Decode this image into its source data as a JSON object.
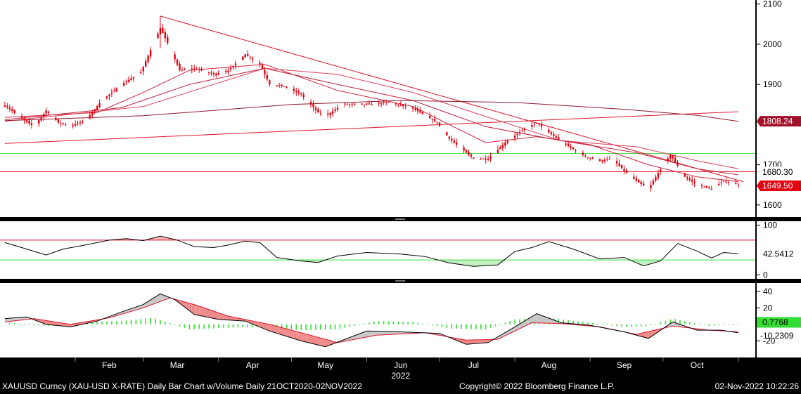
{
  "footer": {
    "description": "XAUUSD Curncy (XAU-USD X-RATE) Daily Bar Chart w/Volume  Daily 21OCT2020-02NOV2022",
    "copyright": "Copyright© 2022 Bloomberg Finance L.P.",
    "timestamp": "02-Nov-2022 10:22:26"
  },
  "colors": {
    "candle": "#e3000f",
    "trendline": "#e0142a",
    "green_line": "#33dd33",
    "rsi_line": "#000000",
    "macd_line": "#000000",
    "macd_signal": "#e0142a",
    "histogram": "#33dd33",
    "panel_bg": "#ffffff",
    "axis_bg": "#ffffff",
    "frame_bg": "#000000"
  },
  "chart_data": [
    {
      "type": "candlestick",
      "panel": "price",
      "y_ticks": [
        "2100",
        "2000",
        "1900",
        "1700",
        "1600"
      ],
      "ylim": [
        1570,
        2110
      ],
      "x_month_labels": [
        "Feb",
        "Mar",
        "Apr",
        "May",
        "Jun",
        "Jul",
        "Aug",
        "Sep",
        "Oct"
      ],
      "year_label": "2022",
      "value_tags": [
        {
          "label": "1808.24",
          "value": 1808.24,
          "style": "moving-average"
        },
        {
          "label": "1680.30",
          "value": 1680.3,
          "style": "level"
        },
        {
          "label": "1649.50",
          "value": 1649.5,
          "style": "last-price"
        }
      ],
      "horizontal_levels": [
        {
          "value": 1728,
          "color": "green"
        },
        {
          "value": 1683,
          "color": "red"
        }
      ],
      "trendlines": [
        {
          "from": {
            "date": "2022-03-08",
            "value": 2070
          },
          "to": {
            "date": "2022-11-03",
            "value": 1658
          }
        },
        {
          "from": {
            "date": "2022-01-03",
            "value": 1753
          },
          "to": {
            "date": "2022-11-01",
            "value": 1832
          }
        }
      ],
      "close_path": {
        "dates": [
          "2022-01-03",
          "2022-01-10",
          "2022-01-15",
          "2022-01-20",
          "2022-01-25",
          "2022-01-30",
          "2022-02-05",
          "2022-02-12",
          "2022-02-20",
          "2022-02-28",
          "2022-03-05",
          "2022-03-08",
          "2022-03-12",
          "2022-03-16",
          "2022-03-22",
          "2022-03-30",
          "2022-04-05",
          "2022-04-12",
          "2022-04-18",
          "2022-04-22",
          "2022-04-28",
          "2022-05-05",
          "2022-05-12",
          "2022-05-16",
          "2022-05-22",
          "2022-06-01",
          "2022-06-10",
          "2022-06-20",
          "2022-06-30",
          "2022-07-05",
          "2022-07-10",
          "2022-07-15",
          "2022-07-21",
          "2022-07-28",
          "2022-08-05",
          "2022-08-10",
          "2022-08-15",
          "2022-08-22",
          "2022-08-30",
          "2022-09-05",
          "2022-09-10",
          "2022-09-15",
          "2022-09-20",
          "2022-09-25",
          "2022-09-28",
          "2022-10-04",
          "2022-10-10",
          "2022-10-15",
          "2022-10-21",
          "2022-10-26",
          "2022-11-01"
        ],
        "values": [
          1848,
          1815,
          1795,
          1835,
          1805,
          1797,
          1810,
          1860,
          1900,
          1930,
          2000,
          2040,
          1990,
          1935,
          1940,
          1925,
          1935,
          1975,
          1950,
          1900,
          1895,
          1875,
          1830,
          1825,
          1850,
          1850,
          1855,
          1840,
          1805,
          1765,
          1740,
          1715,
          1715,
          1755,
          1790,
          1805,
          1780,
          1750,
          1720,
          1710,
          1715,
          1685,
          1660,
          1640,
          1670,
          1725,
          1670,
          1650,
          1640,
          1660,
          1650
        ]
      },
      "moving_averages": [
        {
          "dates": [
            "2022-01-03",
            "2022-02-10",
            "2022-03-01",
            "2022-03-20",
            "2022-04-20",
            "2022-05-20",
            "2022-06-20",
            "2022-07-20",
            "2022-08-10",
            "2022-09-01",
            "2022-09-25",
            "2022-10-15",
            "2022-11-01"
          ],
          "values": [
            1818,
            1830,
            1880,
            1935,
            1950,
            1885,
            1845,
            1755,
            1770,
            1750,
            1700,
            1670,
            1658
          ]
        },
        {
          "dates": [
            "2022-01-03",
            "2022-02-20",
            "2022-03-20",
            "2022-04-20",
            "2022-05-20",
            "2022-06-20",
            "2022-07-20",
            "2022-08-20",
            "2022-09-20",
            "2022-10-15",
            "2022-11-01"
          ],
          "values": [
            1812,
            1842,
            1900,
            1940,
            1900,
            1860,
            1795,
            1760,
            1730,
            1690,
            1675
          ]
        },
        {
          "dates": [
            "2022-01-03",
            "2022-03-01",
            "2022-04-20",
            "2022-05-20",
            "2022-06-20",
            "2022-07-20",
            "2022-08-20",
            "2022-09-20",
            "2022-10-15",
            "2022-11-01"
          ],
          "values": [
            1808,
            1845,
            1940,
            1925,
            1880,
            1820,
            1760,
            1745,
            1710,
            1690
          ]
        },
        {
          "dates": [
            "2022-01-03",
            "2022-03-01",
            "2022-05-01",
            "2022-06-15",
            "2022-08-01",
            "2022-09-15",
            "2022-10-15",
            "2022-11-01"
          ],
          "values": [
            1810,
            1822,
            1850,
            1860,
            1855,
            1838,
            1823,
            1808
          ]
        }
      ]
    },
    {
      "type": "line",
      "panel": "rsi",
      "y_ticks": [
        "100",
        "0"
      ],
      "ylim": [
        -8,
        108
      ],
      "last_value_label": "42.5412",
      "last_value": 42.5412,
      "upper_band": 70,
      "lower_band": 30,
      "series": [
        {
          "dates": [
            "2022-01-03",
            "2022-01-12",
            "2022-01-20",
            "2022-01-27",
            "2022-02-05",
            "2022-02-15",
            "2022-02-22",
            "2022-03-01",
            "2022-03-08",
            "2022-03-15",
            "2022-03-22",
            "2022-03-30",
            "2022-04-05",
            "2022-04-12",
            "2022-04-18",
            "2022-04-25",
            "2022-05-05",
            "2022-05-12",
            "2022-05-20",
            "2022-06-01",
            "2022-06-15",
            "2022-06-25",
            "2022-07-05",
            "2022-07-15",
            "2022-07-25",
            "2022-08-01",
            "2022-08-08",
            "2022-08-15",
            "2022-08-25",
            "2022-09-05",
            "2022-09-15",
            "2022-09-23",
            "2022-09-30",
            "2022-10-07",
            "2022-10-15",
            "2022-10-21",
            "2022-10-26",
            "2022-11-01"
          ],
          "values": [
            65,
            52,
            40,
            52,
            60,
            70,
            73,
            69,
            78,
            70,
            57,
            55,
            60,
            68,
            65,
            35,
            28,
            25,
            38,
            45,
            42,
            37,
            24,
            17,
            20,
            47,
            55,
            67,
            52,
            32,
            35,
            18,
            28,
            63,
            48,
            34,
            45,
            42.5
          ]
        }
      ]
    },
    {
      "type": "line",
      "panel": "macd",
      "y_ticks": [
        "40",
        "20",
        "-20"
      ],
      "ylim": [
        -40,
        50
      ],
      "value_tags": [
        {
          "label": "0.7768",
          "value": 0.7768,
          "style": "histogram"
        },
        {
          "label": "-10.2309",
          "value": -10.2309,
          "style": "macd"
        }
      ],
      "series": [
        {
          "name": "",
          "dates": [
            "2022-01-03",
            "2022-01-12",
            "2022-01-20",
            "2022-01-30",
            "2022-02-10",
            "2022-02-20",
            "2022-03-01",
            "2022-03-08",
            "2022-03-14",
            "2022-03-22",
            "2022-04-01",
            "2022-04-12",
            "2022-04-22",
            "2022-05-05",
            "2022-05-15",
            "2022-06-01",
            "2022-06-15",
            "2022-07-01",
            "2022-07-12",
            "2022-07-21",
            "2022-08-01",
            "2022-08-10",
            "2022-08-20",
            "2022-09-01",
            "2022-09-15",
            "2022-09-25",
            "2022-10-05",
            "2022-10-15",
            "2022-10-25",
            "2022-11-01"
          ],
          "values": [
            7,
            9,
            0,
            -3,
            4,
            15,
            24,
            37,
            30,
            12,
            6,
            4,
            -8,
            -20,
            -27,
            -8,
            -9,
            -11,
            -24,
            -22,
            -3,
            13,
            2,
            -1,
            -9,
            -17,
            3,
            -7,
            -7,
            -10.2
          ]
        },
        {
          "name": "",
          "dates": [
            "2022-01-03",
            "2022-01-15",
            "2022-01-30",
            "2022-02-15",
            "2022-03-01",
            "2022-03-12",
            "2022-03-22",
            "2022-04-05",
            "2022-04-22",
            "2022-05-05",
            "2022-05-20",
            "2022-06-05",
            "2022-06-25",
            "2022-07-12",
            "2022-07-25",
            "2022-08-08",
            "2022-08-20",
            "2022-09-05",
            "2022-09-20",
            "2022-10-05",
            "2022-10-20",
            "2022-11-01"
          ],
          "values": [
            3,
            7,
            0,
            8,
            20,
            32,
            24,
            10,
            0,
            -10,
            -22,
            -13,
            -10,
            -19,
            -18,
            2,
            1,
            -3,
            -12,
            -2,
            -7,
            -9
          ]
        }
      ],
      "histogram": {
        "dates": [
          "2022-01-05",
          "2022-01-20",
          "2022-02-05",
          "2022-02-20",
          "2022-03-05",
          "2022-03-20",
          "2022-04-05",
          "2022-04-20",
          "2022-05-05",
          "2022-05-20",
          "2022-06-05",
          "2022-06-20",
          "2022-07-05",
          "2022-07-20",
          "2022-08-01",
          "2022-08-15",
          "2022-09-01",
          "2022-09-15",
          "2022-09-25",
          "2022-10-05",
          "2022-10-20",
          "2022-11-01"
        ],
        "values": [
          2,
          -2,
          3,
          4,
          8,
          -6,
          -4,
          -3,
          -7,
          -6,
          4,
          3,
          -5,
          -6,
          6,
          8,
          2,
          -3,
          -2,
          7,
          -2,
          0.8
        ]
      }
    }
  ]
}
